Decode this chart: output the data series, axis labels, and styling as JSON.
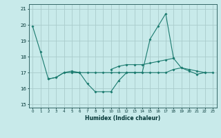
{
  "xlabel": "Humidex (Indice chaleur)",
  "background_color": "#c8eaea",
  "grid_color": "#aacccc",
  "line_color": "#1a7a6e",
  "x_values": [
    0,
    1,
    2,
    3,
    4,
    5,
    6,
    7,
    8,
    9,
    10,
    11,
    12,
    13,
    14,
    15,
    16,
    17,
    18,
    19,
    20,
    21,
    22,
    23
  ],
  "series": [
    [
      19.9,
      18.3,
      16.6,
      16.7,
      17.0,
      17.0,
      17.0,
      null,
      null,
      null,
      null,
      null,
      null,
      null,
      null,
      null,
      null,
      null,
      null,
      null,
      null,
      null,
      null,
      null
    ],
    [
      null,
      null,
      16.6,
      16.7,
      17.0,
      17.1,
      17.0,
      16.3,
      15.8,
      15.8,
      15.8,
      16.5,
      17.0,
      17.0,
      17.0,
      19.1,
      19.9,
      20.7,
      17.9,
      null,
      null,
      null,
      null,
      null
    ],
    [
      null,
      null,
      null,
      null,
      null,
      17.0,
      17.0,
      17.0,
      17.0,
      17.0,
      17.0,
      17.0,
      17.0,
      17.0,
      17.0,
      17.0,
      17.0,
      17.0,
      17.2,
      17.3,
      17.1,
      16.9,
      17.0,
      null
    ],
    [
      null,
      null,
      null,
      null,
      null,
      null,
      null,
      null,
      null,
      null,
      17.2,
      17.4,
      17.5,
      17.5,
      17.5,
      17.6,
      17.7,
      17.8,
      17.9,
      17.3,
      17.2,
      17.1,
      17.0,
      17.0
    ]
  ],
  "ylim": [
    14.8,
    21.3
  ],
  "xlim": [
    -0.5,
    23.5
  ],
  "yticks": [
    15,
    16,
    17,
    18,
    19,
    20,
    21
  ],
  "xticks": [
    0,
    1,
    2,
    3,
    4,
    5,
    6,
    7,
    8,
    9,
    10,
    11,
    12,
    13,
    14,
    15,
    16,
    17,
    18,
    19,
    20,
    21,
    22,
    23
  ],
  "xtick_labels": [
    "0",
    "1",
    "2",
    "3",
    "4",
    "5",
    "6",
    "7",
    "8",
    "9",
    "10",
    "11",
    "12",
    "13",
    "14",
    "15",
    "16",
    "17",
    "18",
    "19",
    "20",
    "21",
    "22",
    "23"
  ]
}
